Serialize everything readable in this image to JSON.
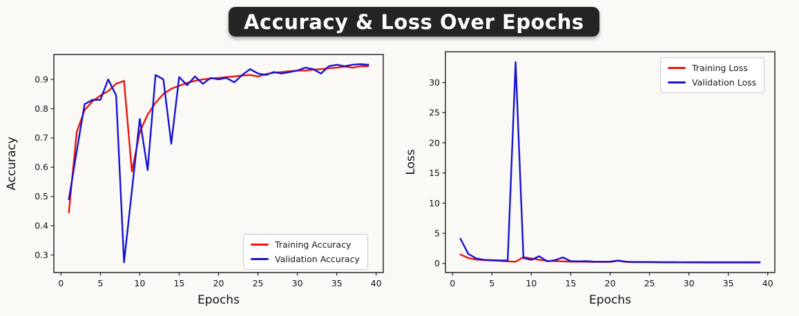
{
  "title": "Accuracy & Loss Over Epochs",
  "colors": {
    "training": "#e8130d",
    "validation": "#1412d0",
    "background": "#faf9f5",
    "title_bg": "#242424",
    "title_text": "#ffffff",
    "axis": "#1b1b1b",
    "tick_text": "#111111"
  },
  "chart_data": [
    {
      "type": "line",
      "title": "",
      "xlabel": "Epochs",
      "ylabel": "Accuracy",
      "x": [
        1,
        2,
        3,
        4,
        5,
        6,
        7,
        8,
        9,
        10,
        11,
        12,
        13,
        14,
        15,
        16,
        17,
        18,
        19,
        20,
        21,
        22,
        23,
        24,
        25,
        26,
        27,
        28,
        29,
        30,
        31,
        32,
        33,
        34,
        35,
        36,
        37,
        38,
        39
      ],
      "xlim": [
        -0.9,
        40.9
      ],
      "ylim": [
        0.24,
        0.985
      ],
      "xticks": [
        0,
        5,
        10,
        15,
        20,
        25,
        30,
        35,
        40
      ],
      "yticks": [
        0.3,
        0.4,
        0.5,
        0.6,
        0.7,
        0.8,
        0.9
      ],
      "ytick_labels": [
        "0.3",
        "0.4",
        "0.5",
        "0.6",
        "0.7",
        "0.8",
        "0.9"
      ],
      "grid": false,
      "legend_position": "lower right",
      "series": [
        {
          "name": "Training Accuracy",
          "color": "#e8130d",
          "values": [
            0.445,
            0.72,
            0.795,
            0.825,
            0.845,
            0.86,
            0.885,
            0.895,
            0.585,
            0.72,
            0.78,
            0.82,
            0.85,
            0.868,
            0.878,
            0.888,
            0.895,
            0.9,
            0.903,
            0.905,
            0.908,
            0.91,
            0.913,
            0.915,
            0.91,
            0.918,
            0.923,
            0.925,
            0.928,
            0.93,
            0.93,
            0.933,
            0.935,
            0.938,
            0.94,
            0.944,
            0.94,
            0.945,
            0.945
          ]
        },
        {
          "name": "Validation Accuracy",
          "color": "#1412d0",
          "values": [
            0.49,
            0.655,
            0.815,
            0.83,
            0.83,
            0.9,
            0.845,
            0.275,
            0.52,
            0.765,
            0.59,
            0.915,
            0.9,
            0.68,
            0.908,
            0.88,
            0.91,
            0.885,
            0.905,
            0.9,
            0.905,
            0.89,
            0.915,
            0.935,
            0.92,
            0.915,
            0.925,
            0.92,
            0.925,
            0.93,
            0.94,
            0.935,
            0.92,
            0.945,
            0.95,
            0.945,
            0.95,
            0.952,
            0.95
          ]
        }
      ]
    },
    {
      "type": "line",
      "title": "",
      "xlabel": "Epochs",
      "ylabel": "Loss",
      "x": [
        1,
        2,
        3,
        4,
        5,
        6,
        7,
        8,
        9,
        10,
        11,
        12,
        13,
        14,
        15,
        16,
        17,
        18,
        19,
        20,
        21,
        22,
        23,
        24,
        25,
        26,
        27,
        28,
        29,
        30,
        31,
        32,
        33,
        34,
        35,
        36,
        37,
        38,
        39
      ],
      "xlim": [
        -0.9,
        40.9
      ],
      "ylim": [
        -1.5,
        35.1
      ],
      "xticks": [
        0,
        5,
        10,
        15,
        20,
        25,
        30,
        35,
        40
      ],
      "yticks": [
        0,
        5,
        10,
        15,
        20,
        25,
        30
      ],
      "ytick_labels": [
        "0",
        "5",
        "10",
        "15",
        "20",
        "25",
        "30"
      ],
      "grid": false,
      "legend_position": "upper right",
      "series": [
        {
          "name": "Training Loss",
          "color": "#e8130d",
          "values": [
            1.5,
            0.9,
            0.65,
            0.55,
            0.5,
            0.45,
            0.35,
            0.3,
            1.05,
            0.85,
            0.6,
            0.45,
            0.4,
            0.35,
            0.3,
            0.3,
            0.28,
            0.25,
            0.25,
            0.25,
            0.45,
            0.25,
            0.22,
            0.2,
            0.2,
            0.2,
            0.18,
            0.18,
            0.18,
            0.17,
            0.17,
            0.16,
            0.16,
            0.16,
            0.15,
            0.15,
            0.15,
            0.15,
            0.15
          ]
        },
        {
          "name": "Validation Loss",
          "color": "#1412d0",
          "values": [
            4.1,
            1.6,
            0.85,
            0.6,
            0.55,
            0.5,
            0.5,
            33.4,
            0.9,
            0.6,
            1.2,
            0.35,
            0.55,
            1.0,
            0.4,
            0.35,
            0.4,
            0.3,
            0.3,
            0.3,
            0.5,
            0.3,
            0.25,
            0.25,
            0.25,
            0.22,
            0.22,
            0.22,
            0.2,
            0.2,
            0.2,
            0.2,
            0.2,
            0.2,
            0.2,
            0.2,
            0.2,
            0.2,
            0.2
          ]
        }
      ]
    }
  ]
}
